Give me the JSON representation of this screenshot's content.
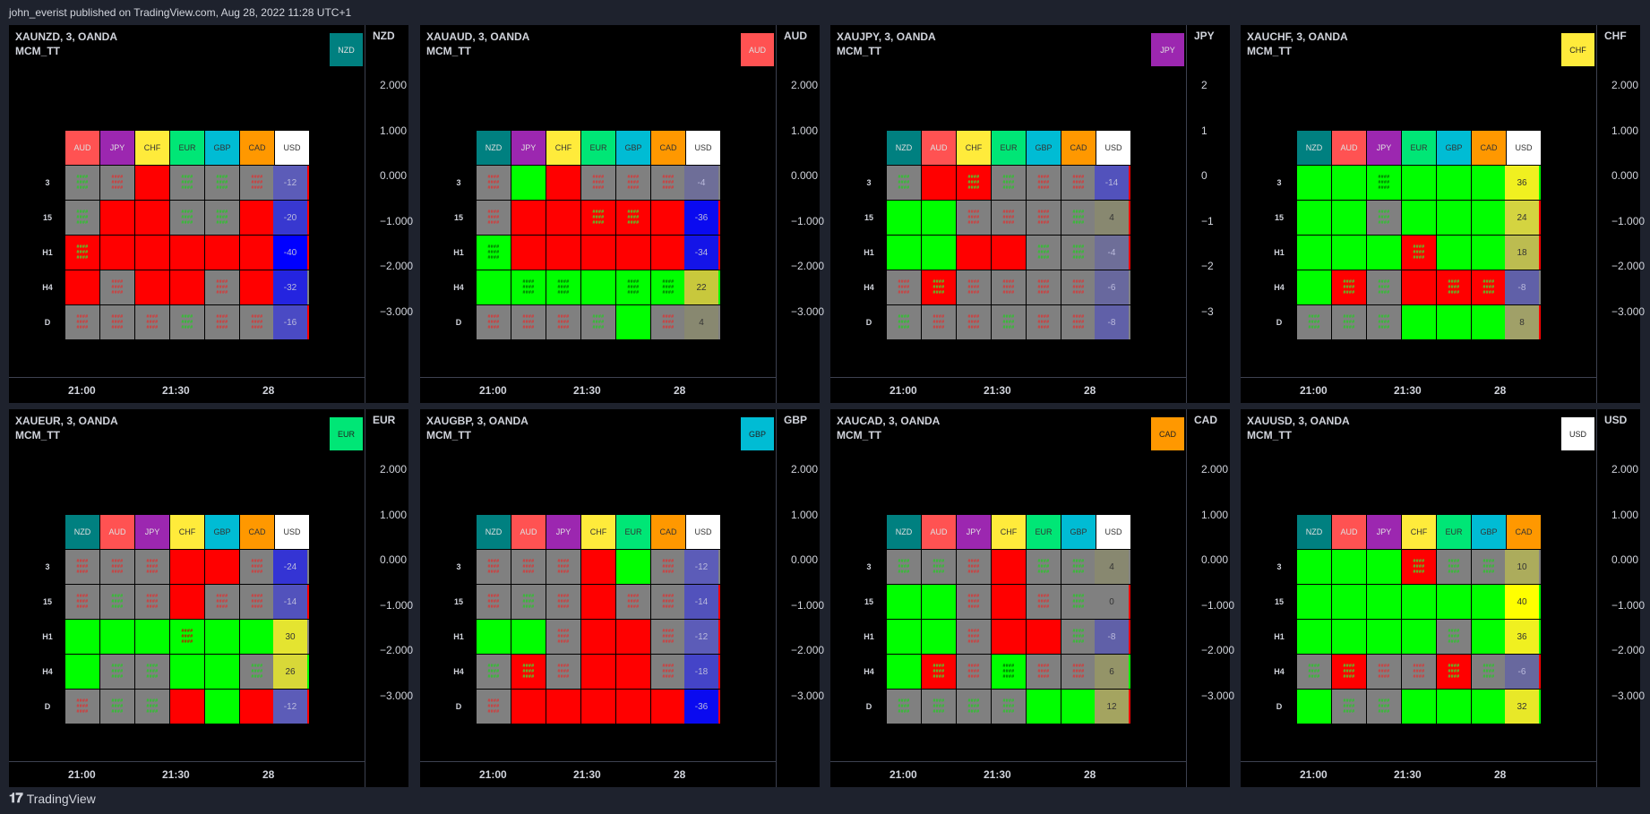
{
  "publisher": "john_everist published on TradingView.com, Aug 28, 2022 11:28 UTC+1",
  "footer": {
    "brand": "TradingView"
  },
  "colors": {
    "NZD": "#008080",
    "AUD": "#ff5252",
    "JPY": "#9c27b0",
    "CHF": "#ffeb3b",
    "EUR": "#00e676",
    "GBP": "#00bcd4",
    "CAD": "#ff9800",
    "USD": "#ffffff",
    "green": "#00ff00",
    "red": "#ff0000",
    "gray": "#808080"
  },
  "time_labels": [
    "21:00",
    "21:30",
    "28"
  ],
  "row_labels": [
    "3",
    "15",
    "H1",
    "H4",
    "D"
  ],
  "panels": [
    {
      "symbol": "XAUNZD, 3, OANDA",
      "study": "MCM_TT",
      "ccy": "NZD",
      "legend": "NZD",
      "ticks": [
        "2.000",
        "1.000",
        "0.000",
        "−1.000",
        "−2.000",
        "−3.000"
      ],
      "cols": [
        "AUD",
        "JPY",
        "CHF",
        "EUR",
        "GBP",
        "CAD",
        "USD"
      ],
      "cells": [
        [
          "gg",
          "gr",
          "R",
          "gg",
          "gg",
          "gr",
          "R"
        ],
        [
          "gg",
          "R",
          "R",
          "gg",
          "gg",
          "R",
          "R"
        ],
        [
          "Rg",
          "R",
          "R",
          "R",
          "R",
          "R",
          "R"
        ],
        [
          "R",
          "gr",
          "R",
          "R",
          "gr",
          "R",
          "gr"
        ],
        [
          "gr",
          "gr",
          "gr",
          "gg",
          "gr",
          "gr",
          "R"
        ]
      ],
      "side": [
        {
          "v": "-12",
          "c": "#5c5cb8"
        },
        {
          "v": "-20",
          "c": "#3838d0"
        },
        {
          "v": "-40",
          "c": "#0000ff"
        },
        {
          "v": "-32",
          "c": "#2424e0"
        },
        {
          "v": "-16",
          "c": "#4a4ac4"
        }
      ]
    },
    {
      "symbol": "XAUAUD, 3, OANDA",
      "study": "MCM_TT",
      "ccy": "AUD",
      "legend": "AUD",
      "ticks": [
        "2.000",
        "1.000",
        "0.000",
        "−1.000",
        "−2.000",
        "−3.000"
      ],
      "cols": [
        "NZD",
        "JPY",
        "CHF",
        "EUR",
        "GBP",
        "CAD",
        "USD"
      ],
      "cells": [
        [
          "gr",
          "G",
          "R",
          "gr",
          "gr",
          "gr",
          "gr"
        ],
        [
          "gr",
          "R",
          "R",
          "Rg",
          "Rg",
          "R",
          "R"
        ],
        [
          "Gg",
          "R",
          "R",
          "R",
          "R",
          "R",
          "R"
        ],
        [
          "G",
          "Gg",
          "Gg",
          "G",
          "Gg",
          "Gg",
          "Gg"
        ],
        [
          "gr",
          "gr",
          "gr",
          "gg",
          "G",
          "gr",
          "gr"
        ]
      ],
      "side": [
        {
          "v": "-4",
          "c": "#6e6e98"
        },
        {
          "v": "-36",
          "c": "#0a0af0"
        },
        {
          "v": "-34",
          "c": "#1414e8"
        },
        {
          "v": "22",
          "c": "#c8c83c"
        },
        {
          "v": "4",
          "c": "#888870"
        }
      ]
    },
    {
      "symbol": "XAUJPY, 3, OANDA",
      "study": "MCM_TT",
      "ccy": "JPY",
      "legend": "JPY",
      "ticks": [
        "2",
        "1",
        "0",
        "−1",
        "−2",
        "−3"
      ],
      "cols": [
        "NZD",
        "AUD",
        "CHF",
        "EUR",
        "GBP",
        "CAD",
        "USD"
      ],
      "cells": [
        [
          "gg",
          "R",
          "Rg",
          "gg",
          "gr",
          "gr",
          "R"
        ],
        [
          "G",
          "G",
          "gr",
          "gr",
          "gr",
          "gg",
          "R"
        ],
        [
          "G",
          "G",
          "R",
          "R",
          "gg",
          "gg",
          "R"
        ],
        [
          "gr",
          "Rg",
          "gr",
          "gr",
          "gr",
          "gr",
          "gr"
        ],
        [
          "gg",
          "gr",
          "gr",
          "gg",
          "gr",
          "gr",
          "gr"
        ]
      ],
      "side": [
        {
          "v": "-14",
          "c": "#5252bc"
        },
        {
          "v": "4",
          "c": "#888870"
        },
        {
          "v": "-4",
          "c": "#6e6e98"
        },
        {
          "v": "-6",
          "c": "#68689e"
        },
        {
          "v": "-8",
          "c": "#6060a8"
        }
      ]
    },
    {
      "symbol": "XAUCHF, 3, OANDA",
      "study": "MCM_TT",
      "ccy": "CHF",
      "legend": "CHF",
      "ticks": [
        "2.000",
        "1.000",
        "0.000",
        "−1.000",
        "−2.000",
        "−3.000"
      ],
      "cols": [
        "NZD",
        "AUD",
        "JPY",
        "EUR",
        "GBP",
        "CAD",
        "USD"
      ],
      "cells": [
        [
          "G",
          "G",
          "Gg",
          "G",
          "G",
          "G",
          "Gg"
        ],
        [
          "G",
          "G",
          "gg",
          "G",
          "G",
          "G",
          "R"
        ],
        [
          "G",
          "G",
          "G",
          "Rg",
          "G",
          "G",
          "R"
        ],
        [
          "G",
          "Rg",
          "gg",
          "R",
          "Rg",
          "Rg",
          "gr"
        ],
        [
          "gg",
          "gg",
          "gg",
          "G",
          "G",
          "G",
          "R"
        ]
      ],
      "side": [
        {
          "v": "36",
          "c": "#f0f020"
        },
        {
          "v": "24",
          "c": "#d4d440"
        },
        {
          "v": "18",
          "c": "#bcbc50"
        },
        {
          "v": "-8",
          "c": "#6060a8"
        },
        {
          "v": "8",
          "c": "#a0a068"
        }
      ]
    },
    {
      "symbol": "XAUEUR, 3, OANDA",
      "study": "MCM_TT",
      "ccy": "EUR",
      "legend": "EUR",
      "ticks": [
        "2.000",
        "1.000",
        "0.000",
        "−1.000",
        "−2.000",
        "−3.000"
      ],
      "cols": [
        "NZD",
        "AUD",
        "JPY",
        "CHF",
        "GBP",
        "CAD",
        "USD"
      ],
      "cells": [
        [
          "gr",
          "gr",
          "gr",
          "R",
          "R",
          "gr",
          "gr"
        ],
        [
          "gr",
          "gg",
          "gr",
          "R",
          "gr",
          "gr",
          "R"
        ],
        [
          "G",
          "G",
          "G",
          "Gr",
          "G",
          "G",
          "gr"
        ],
        [
          "G",
          "gg",
          "gg",
          "G",
          "G",
          "gg",
          "Gg"
        ],
        [
          "gr",
          "gg",
          "gg",
          "R",
          "G",
          "R",
          "R"
        ]
      ],
      "side": [
        {
          "v": "-24",
          "c": "#3434d4"
        },
        {
          "v": "-14",
          "c": "#5252bc"
        },
        {
          "v": "30",
          "c": "#e4e430"
        },
        {
          "v": "26",
          "c": "#d8d838"
        },
        {
          "v": "-12",
          "c": "#5c5cb8"
        }
      ]
    },
    {
      "symbol": "XAUGBP, 3, OANDA",
      "study": "MCM_TT",
      "ccy": "GBP",
      "legend": "GBP",
      "ticks": [
        "2.000",
        "1.000",
        "0.000",
        "−1.000",
        "−2.000",
        "−3.000"
      ],
      "cols": [
        "NZD",
        "AUD",
        "JPY",
        "CHF",
        "EUR",
        "CAD",
        "USD"
      ],
      "cells": [
        [
          "gr",
          "gr",
          "gr",
          "R",
          "G",
          "gr",
          "gr"
        ],
        [
          "gr",
          "gg",
          "gr",
          "R",
          "gr",
          "gr",
          "R"
        ],
        [
          "G",
          "G",
          "gr",
          "R",
          "R",
          "gr",
          "R"
        ],
        [
          "gg",
          "Rg",
          "gr",
          "R",
          "R",
          "gr",
          "R"
        ],
        [
          "gr",
          "R",
          "R",
          "R",
          "R",
          "R",
          "R"
        ]
      ],
      "side": [
        {
          "v": "-12",
          "c": "#5c5cb8"
        },
        {
          "v": "-14",
          "c": "#5252bc"
        },
        {
          "v": "-12",
          "c": "#5c5cb8"
        },
        {
          "v": "-18",
          "c": "#4444c8"
        },
        {
          "v": "-36",
          "c": "#0a0af0"
        }
      ]
    },
    {
      "symbol": "XAUCAD, 3, OANDA",
      "study": "MCM_TT",
      "ccy": "CAD",
      "legend": "CAD",
      "ticks": [
        "2.000",
        "1.000",
        "0.000",
        "−1.000",
        "−2.000",
        "−3.000"
      ],
      "cols": [
        "NZD",
        "AUD",
        "JPY",
        "CHF",
        "EUR",
        "GBP",
        "USD"
      ],
      "cells": [
        [
          "gg",
          "gg",
          "gr",
          "R",
          "gg",
          "gg",
          "gg"
        ],
        [
          "G",
          "G",
          "gr",
          "R",
          "gr",
          "gg",
          "R"
        ],
        [
          "G",
          "G",
          "gr",
          "R",
          "R",
          "gg",
          "R"
        ],
        [
          "G",
          "Rg",
          "gr",
          "Gg",
          "gr",
          "gr",
          "Gg"
        ],
        [
          "gg",
          "gg",
          "gg",
          "gg",
          "G",
          "G",
          "R"
        ]
      ],
      "side": [
        {
          "v": "4",
          "c": "#888870"
        },
        {
          "v": "0",
          "c": "#808080"
        },
        {
          "v": "-8",
          "c": "#6060a8"
        },
        {
          "v": "6",
          "c": "#949468"
        },
        {
          "v": "12",
          "c": "#a4a460"
        }
      ]
    },
    {
      "symbol": "XAUUSD, 3, OANDA",
      "study": "MCM_TT",
      "ccy": "USD",
      "legend": "USD",
      "ticks": [
        "2.000",
        "1.000",
        "0.000",
        "−1.000",
        "−2.000",
        "−3.000"
      ],
      "cols": [
        "NZD",
        "AUD",
        "JPY",
        "CHF",
        "EUR",
        "GBP",
        "CAD"
      ],
      "cells": [
        [
          "G",
          "G",
          "G",
          "Rg",
          "gg",
          "gg",
          "gr"
        ],
        [
          "G",
          "G",
          "G",
          "G",
          "G",
          "G",
          "G"
        ],
        [
          "G",
          "G",
          "G",
          "G",
          "gg",
          "G",
          "G"
        ],
        [
          "gg",
          "Rg",
          "gr",
          "gr",
          "Rg",
          "gg",
          "Rg"
        ],
        [
          "G",
          "gg",
          "gg",
          "G",
          "G",
          "G",
          "G"
        ]
      ],
      "side": [
        {
          "v": "10",
          "c": "#acac5c"
        },
        {
          "v": "40",
          "c": "#ffff00"
        },
        {
          "v": "36",
          "c": "#f0f020"
        },
        {
          "v": "-6",
          "c": "#68689e"
        },
        {
          "v": "32",
          "c": "#e8e828"
        }
      ]
    }
  ]
}
